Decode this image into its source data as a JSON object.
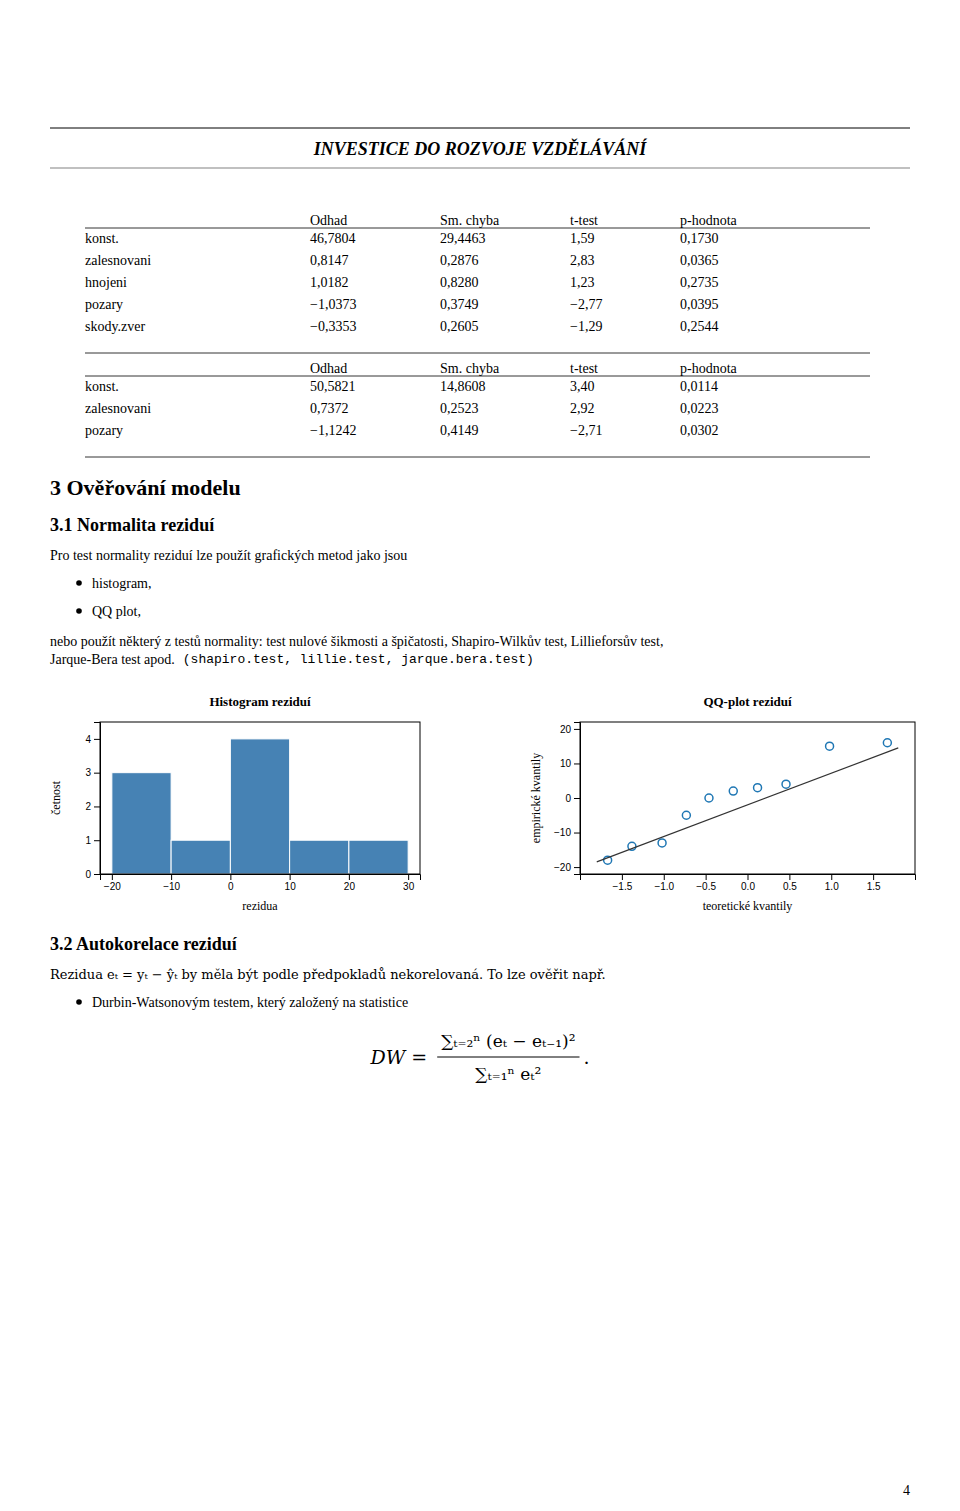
{
  "page": {
    "header_text": "INVESTICE DO ROZVOJE VZDĚLÁVÁNÍ",
    "table1": {
      "columns": [
        "Odhad",
        "Sm. chyba",
        "t-test",
        "p-hodnota"
      ],
      "rows": [
        [
          "konst.",
          "46,7804",
          "29,4463",
          "1,59",
          "0,1730"
        ],
        [
          "zalesnovani",
          "0,8147",
          "0,2876",
          "2,83",
          "0,0365"
        ],
        [
          "hnojeni",
          "1,0182",
          "0,8280",
          "1,23",
          "0,2735"
        ],
        [
          "pozary",
          "−1,0373",
          "0,3749",
          "−2,77",
          "0,0395"
        ],
        [
          "skody.zver",
          "−0,3353",
          "0,2605",
          "−1,29",
          "0,2544"
        ]
      ]
    },
    "table2": {
      "columns": [
        "Odhad",
        "Sm. chyba",
        "t-test",
        "p-hodnota"
      ],
      "rows": [
        [
          "konst.",
          "50,5821",
          "14,8608",
          "3,40",
          "0,0114"
        ],
        [
          "zalesnovani",
          "0,7372",
          "0,2523",
          "2,92",
          "0,0223"
        ],
        [
          "pozary",
          "−1,1242",
          "0,4149",
          "−2,71",
          "0,0302"
        ]
      ]
    },
    "section3_title": "3   Ověřování modelu",
    "section31_title": "3.1   Normalita reziduí",
    "para1": "Pro test normality reziduí lze použít grafických metod jako jsou",
    "bullet1": "histogram,",
    "bullet2": "QQ plot,",
    "para2_normal": "nebo použít některý z testů normality: test nulové šikmosti a špičatosti, Shapiro-Wilkův test, Lillieforsův test,",
    "para2_cont": "Jarque-Bera test apod.",
    "para2_code": "(shapiro.test, lillie.test, jarque.bera.test)",
    "section32_title": "3.2   Autokorelace reziduí",
    "para3": "Rezidua eₜ = yₜ − ŷₜ by měla být podle předpokladů nekorelovaná. To lze ověřit např.",
    "bullet3": "Durbin-Watsonovým testem, který založený na statistice",
    "dw_formula": {
      "lhs": "DW =",
      "numerator": "∑ₜ₌₂ⁿ (eₜ − eₜ₋₁)²",
      "denominator": "∑ₜ₌₁ⁿ eₜ²",
      "end": "."
    },
    "page_number": "4"
  },
  "chart_data": [
    {
      "type": "histogram",
      "title": "Histogram reziduí",
      "x_label": "rezidua",
      "y_label": "četnost",
      "bins": [
        -20,
        -10,
        0,
        10,
        20,
        30
      ],
      "values": [
        3,
        1,
        4,
        1,
        1
      ],
      "xlim": [
        -22,
        32
      ],
      "ylim": [
        0,
        4.5
      ],
      "xticks": [
        -20,
        -10,
        0,
        10,
        20,
        30
      ],
      "yticks": [
        0,
        1,
        2,
        3,
        4
      ],
      "grid": false
    },
    {
      "type": "scatter",
      "title": "QQ-plot reziduí",
      "x_label": "teoretické kvantily",
      "y_label": "empirické kvantily",
      "series": [
        {
          "type": "scatter",
          "marker": "circle",
          "x": [
            -1.67,
            -1.38,
            -1.02,
            -0.73,
            -0.46,
            -0.17,
            0.12,
            0.46,
            0.98,
            1.67
          ],
          "values": [
            -18,
            -14,
            -13,
            -5,
            0,
            2,
            3,
            4,
            15,
            16
          ]
        },
        {
          "type": "line",
          "line_style": "solid",
          "x": [
            -1.8,
            1.8
          ],
          "values": [
            -18.5,
            14.5
          ]
        }
      ],
      "xlim": [
        -2.0,
        2.0
      ],
      "ylim": [
        -22,
        22
      ],
      "xticks": [
        {
          "value": -1.5,
          "label": "−1.5"
        },
        {
          "value": -1.0,
          "label": "−1.0"
        },
        {
          "value": -0.5,
          "label": "−0.5"
        },
        {
          "value": 0.0,
          "label": "0.0"
        },
        {
          "value": 0.5,
          "label": "0.5"
        },
        {
          "value": 1.0,
          "label": "1.0"
        },
        {
          "value": 1.5,
          "label": "1.5"
        }
      ],
      "yticks": [
        -20,
        -10,
        0,
        10,
        20
      ],
      "grid": false
    }
  ]
}
